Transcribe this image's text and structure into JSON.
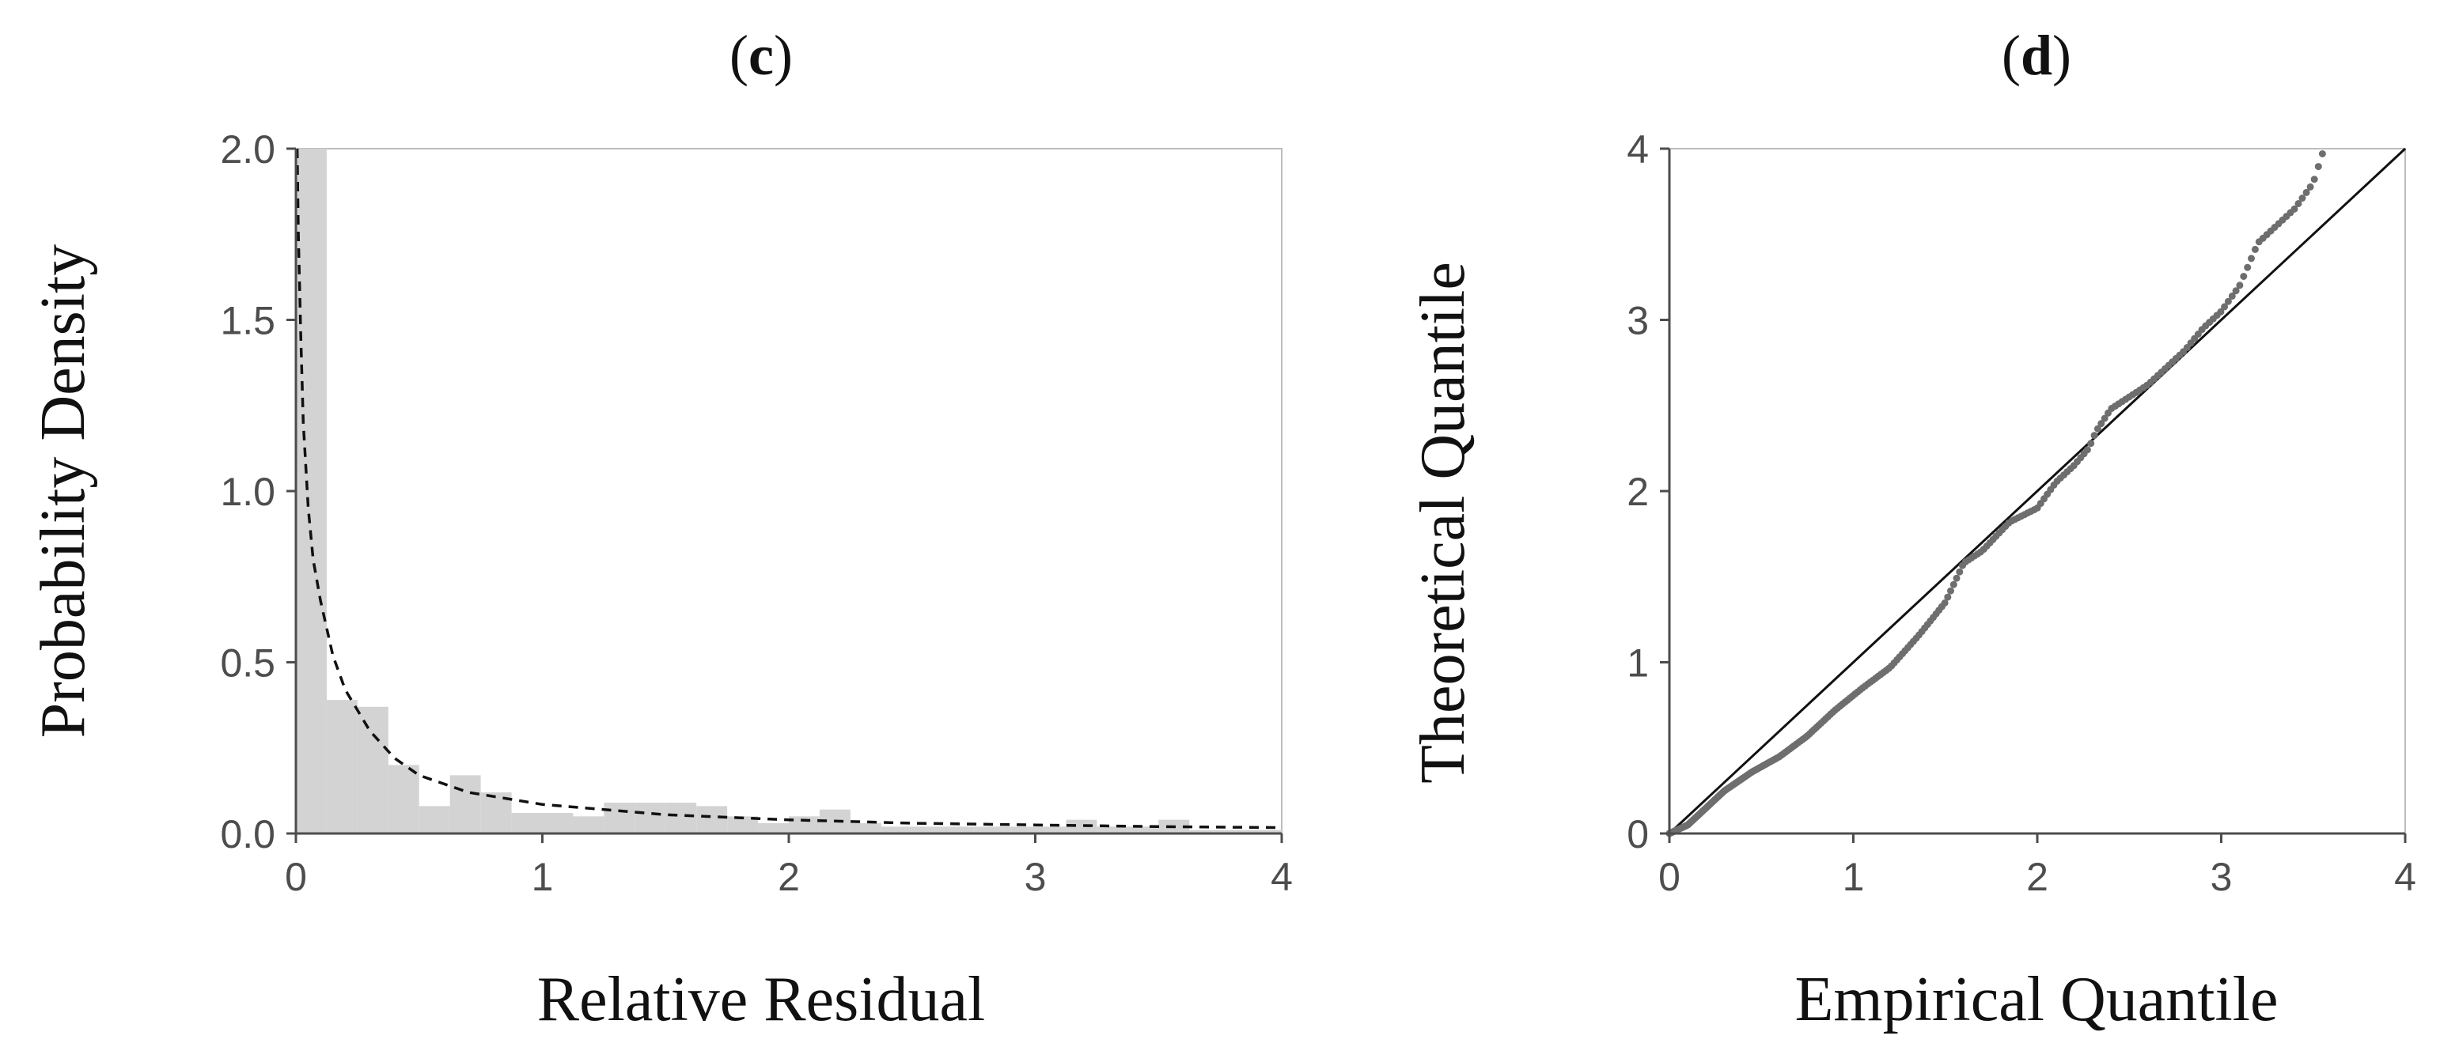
{
  "chart_data": [
    {
      "type": "bar",
      "title": "(c)",
      "title_bold": "c",
      "xlabel": "Relative Residual",
      "ylabel": "Probability Density",
      "xlim": [
        0,
        4
      ],
      "ylim": [
        0,
        2.0
      ],
      "xticks": [
        "0",
        "1",
        "2",
        "3",
        "4"
      ],
      "yticks": [
        "0.0",
        "0.5",
        "1.0",
        "1.5",
        "2.0"
      ],
      "grid": false,
      "legend": "none",
      "bar_color": "#d3d3d3",
      "histogram": {
        "bin_width": 0.125,
        "bins_start": [
          0,
          0.125,
          0.25,
          0.375,
          0.5,
          0.625,
          0.75,
          0.875,
          1.0,
          1.125,
          1.25,
          1.375,
          1.5,
          1.625,
          1.75,
          1.875,
          2.0,
          2.125,
          2.25,
          2.375,
          2.5,
          2.625,
          2.75,
          2.875,
          3.0,
          3.125,
          3.25,
          3.375,
          3.5,
          3.625,
          3.75,
          3.875
        ],
        "values": [
          2.0,
          0.39,
          0.37,
          0.2,
          0.08,
          0.17,
          0.12,
          0.06,
          0.06,
          0.05,
          0.09,
          0.09,
          0.09,
          0.08,
          0.05,
          0.03,
          0.05,
          0.07,
          0.03,
          0.02,
          0.02,
          0.02,
          0.02,
          0.02,
          0.02,
          0.04,
          0.02,
          0.02,
          0.04,
          0.01,
          0.01,
          0.01
        ]
      },
      "fitted_curve": {
        "style": "dashed",
        "x": [
          0.005,
          0.01,
          0.02,
          0.03,
          0.05,
          0.07,
          0.1,
          0.15,
          0.2,
          0.3,
          0.4,
          0.5,
          0.7,
          1.0,
          1.5,
          2.0,
          2.5,
          3.0,
          3.5,
          4.0
        ],
        "y": [
          2.0,
          1.75,
          1.45,
          1.2,
          0.95,
          0.8,
          0.68,
          0.52,
          0.42,
          0.3,
          0.22,
          0.17,
          0.12,
          0.085,
          0.055,
          0.04,
          0.03,
          0.025,
          0.02,
          0.017
        ]
      }
    },
    {
      "type": "scatter",
      "title": "(d)",
      "title_bold": "d",
      "xlabel": "Empirical Quantile",
      "ylabel": "Theoretical Quantile",
      "xlim": [
        0,
        4
      ],
      "ylim": [
        0,
        4
      ],
      "xticks": [
        "0",
        "1",
        "2",
        "3",
        "4"
      ],
      "yticks": [
        "0",
        "1",
        "2",
        "3",
        "4"
      ],
      "grid": false,
      "legend": "none",
      "point_color": "#6e6e6e",
      "reference_line": {
        "x": [
          0,
          4
        ],
        "y": [
          0,
          4
        ]
      },
      "qq_curve": {
        "x": [
          0,
          0.1,
          0.2,
          0.3,
          0.45,
          0.6,
          0.75,
          0.9,
          1.05,
          1.2,
          1.35,
          1.5,
          1.6,
          1.7,
          1.85,
          2.0,
          2.1,
          2.2,
          2.28,
          2.32,
          2.4,
          2.5,
          2.6,
          2.7,
          2.8,
          2.9,
          3.0,
          3.1,
          3.2,
          3.3,
          3.4,
          3.5,
          3.55
        ],
        "y": [
          0,
          0.05,
          0.15,
          0.25,
          0.36,
          0.45,
          0.57,
          0.72,
          0.85,
          0.97,
          1.15,
          1.35,
          1.58,
          1.65,
          1.82,
          1.9,
          2.05,
          2.15,
          2.25,
          2.35,
          2.48,
          2.55,
          2.62,
          2.72,
          2.82,
          2.95,
          3.05,
          3.2,
          3.45,
          3.55,
          3.65,
          3.8,
          3.97
        ]
      },
      "n_points": 260
    }
  ]
}
